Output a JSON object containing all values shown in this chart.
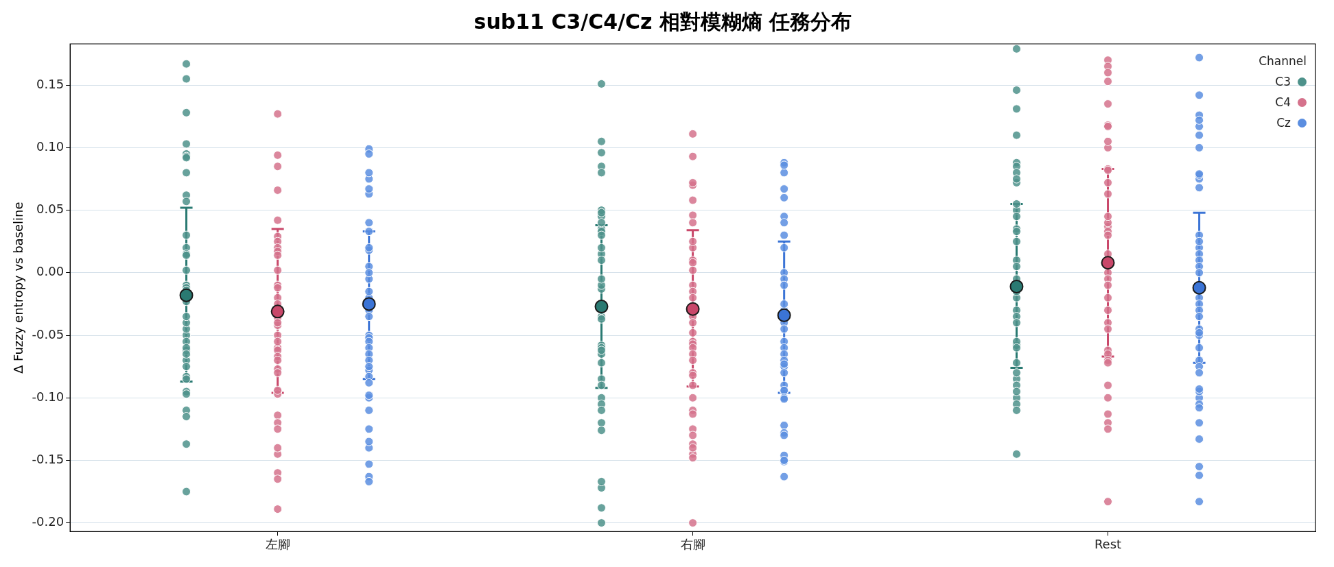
{
  "chart_data": {
    "type": "scatter",
    "title": "sub11 C3/C4/Cz 相對模糊熵 任務分布",
    "ylabel": "Δ Fuzzy entropy vs baseline",
    "legend_title": "Channel",
    "legend": "top right",
    "grid": "y",
    "marker": "circle",
    "categories": [
      "左腳",
      "右腳",
      "Rest"
    ],
    "ylim": [
      -0.207,
      0.183
    ],
    "yticks": [
      {
        "value": -0.2,
        "label": "-0.20"
      },
      {
        "value": -0.15,
        "label": "-0.15"
      },
      {
        "value": -0.1,
        "label": "-0.10"
      },
      {
        "value": -0.05,
        "label": "-0.05"
      },
      {
        "value": 0,
        "label": "0.00"
      },
      {
        "value": 0.05,
        "label": "0.05"
      },
      {
        "value": 0.1,
        "label": "0.10"
      },
      {
        "value": 0.15,
        "label": "0.15"
      }
    ],
    "series": [
      {
        "name": "C3",
        "color": "#4e928b",
        "x": [
          "左腳",
          "左腳",
          "左腳",
          "左腳",
          "左腳",
          "左腳",
          "左腳",
          "左腳",
          "左腳",
          "左腳",
          "左腳",
          "左腳",
          "左腳",
          "左腳",
          "左腳",
          "左腳",
          "左腳",
          "左腳",
          "左腳",
          "左腳",
          "左腳",
          "左腳",
          "左腳",
          "左腳",
          "左腳",
          "左腳",
          "左腳",
          "左腳",
          "左腳",
          "左腳",
          "左腳",
          "左腳",
          "左腳",
          "左腳",
          "左腳",
          "左腳",
          "左腳",
          "右腳",
          "右腳",
          "右腳",
          "右腳",
          "右腳",
          "右腳",
          "右腳",
          "右腳",
          "右腳",
          "右腳",
          "右腳",
          "右腳",
          "右腳",
          "右腳",
          "右腳",
          "右腳",
          "右腳",
          "右腳",
          "右腳",
          "右腳",
          "右腳",
          "右腳",
          "右腳",
          "右腳",
          "右腳",
          "右腳",
          "右腳",
          "右腳",
          "右腳",
          "右腳",
          "右腳",
          "右腳",
          "右腳",
          "右腳",
          "右腳",
          "右腳",
          "右腳",
          "Rest",
          "Rest",
          "Rest",
          "Rest",
          "Rest",
          "Rest",
          "Rest",
          "Rest",
          "Rest",
          "Rest",
          "Rest",
          "Rest",
          "Rest",
          "Rest",
          "Rest",
          "Rest",
          "Rest",
          "Rest",
          "Rest",
          "Rest",
          "Rest",
          "Rest",
          "Rest",
          "Rest",
          "Rest",
          "Rest",
          "Rest",
          "Rest",
          "Rest",
          "Rest",
          "Rest",
          "Rest",
          "Rest",
          "Rest",
          "Rest"
        ],
        "values": [
          0.103,
          0.095,
          0.155,
          0.167,
          0.128,
          0.093,
          0.092,
          0.08,
          0.062,
          0.057,
          0.02,
          0.03,
          0.015,
          0.014,
          0.002,
          -0.023,
          -0.01,
          -0.012,
          -0.014,
          -0.05,
          -0.055,
          -0.062,
          -0.07,
          -0.06,
          -0.065,
          -0.083,
          -0.075,
          -0.11,
          -0.095,
          -0.085,
          -0.115,
          -0.097,
          -0.137,
          -0.175,
          -0.045,
          -0.04,
          -0.035,
          0.151,
          0.096,
          0.105,
          0.085,
          0.08,
          0.045,
          0.05,
          0.035,
          0.04,
          0.033,
          0.03,
          0.048,
          0.015,
          0.02,
          0.01,
          -0.013,
          -0.01,
          -0.005,
          -0.035,
          -0.03,
          -0.037,
          -0.058,
          -0.06,
          -0.065,
          -0.062,
          -0.072,
          -0.085,
          -0.1,
          -0.09,
          -0.105,
          -0.11,
          -0.12,
          -0.126,
          -0.172,
          -0.188,
          -0.2,
          -0.167,
          0.179,
          0.146,
          0.131,
          0.11,
          0.088,
          0.085,
          0.08,
          0.072,
          0.075,
          0.05,
          0.055,
          0.045,
          0.035,
          0.025,
          0.033,
          0.01,
          0.005,
          -0.005,
          -0.02,
          -0.03,
          -0.035,
          -0.04,
          -0.058,
          -0.055,
          -0.06,
          -0.072,
          -0.085,
          -0.08,
          -0.09,
          -0.1,
          -0.105,
          -0.11,
          -0.095,
          -0.145,
          -0.015
        ]
      },
      {
        "name": "C4",
        "color": "#d5728c",
        "x": [
          "左腳",
          "左腳",
          "左腳",
          "左腳",
          "左腳",
          "左腳",
          "左腳",
          "左腳",
          "左腳",
          "左腳",
          "左腳",
          "左腳",
          "左腳",
          "左腳",
          "左腳",
          "左腳",
          "左腳",
          "左腳",
          "左腳",
          "左腳",
          "左腳",
          "左腳",
          "左腳",
          "左腳",
          "左腳",
          "左腳",
          "左腳",
          "左腳",
          "左腳",
          "左腳",
          "左腳",
          "左腳",
          "左腳",
          "左腳",
          "左腳",
          "左腳",
          "左腳",
          "右腳",
          "右腳",
          "右腳",
          "右腳",
          "右腳",
          "右腳",
          "右腳",
          "右腳",
          "右腳",
          "右腳",
          "右腳",
          "右腳",
          "右腳",
          "右腳",
          "右腳",
          "右腳",
          "右腳",
          "右腳",
          "右腳",
          "右腳",
          "右腳",
          "右腳",
          "右腳",
          "右腳",
          "右腳",
          "右腳",
          "右腳",
          "右腳",
          "右腳",
          "右腳",
          "右腳",
          "右腳",
          "右腳",
          "右腳",
          "右腳",
          "右腳",
          "Rest",
          "Rest",
          "Rest",
          "Rest",
          "Rest",
          "Rest",
          "Rest",
          "Rest",
          "Rest",
          "Rest",
          "Rest",
          "Rest",
          "Rest",
          "Rest",
          "Rest",
          "Rest",
          "Rest",
          "Rest",
          "Rest",
          "Rest",
          "Rest",
          "Rest",
          "Rest",
          "Rest",
          "Rest",
          "Rest",
          "Rest",
          "Rest",
          "Rest",
          "Rest",
          "Rest",
          "Rest",
          "Rest",
          "Rest",
          "Rest",
          "Rest"
        ],
        "values": [
          0.029,
          0.094,
          0.127,
          0.085,
          0.066,
          0.042,
          0.002,
          0.025,
          0.02,
          0.017,
          0.014,
          -0.01,
          -0.012,
          -0.02,
          -0.036,
          -0.042,
          -0.04,
          -0.05,
          -0.06,
          -0.062,
          -0.067,
          -0.07,
          -0.077,
          -0.08,
          -0.095,
          -0.097,
          -0.094,
          -0.114,
          -0.12,
          -0.125,
          -0.145,
          -0.14,
          -0.16,
          -0.165,
          -0.189,
          -0.055,
          -0.025,
          0.111,
          0.093,
          0.07,
          0.072,
          0.058,
          0.046,
          0.04,
          0.02,
          0.025,
          0.01,
          0.008,
          0.002,
          -0.01,
          -0.015,
          -0.035,
          -0.04,
          -0.048,
          -0.055,
          -0.057,
          -0.06,
          -0.065,
          -0.07,
          -0.08,
          -0.09,
          -0.082,
          -0.1,
          -0.11,
          -0.113,
          -0.125,
          -0.13,
          -0.137,
          -0.145,
          -0.14,
          -0.148,
          -0.2,
          -0.02,
          0.17,
          0.165,
          0.16,
          0.153,
          0.135,
          0.118,
          0.117,
          0.1,
          0.105,
          0.072,
          0.083,
          0.082,
          0.063,
          0.037,
          0.04,
          0.045,
          0.033,
          0.03,
          0.015,
          0.0,
          -0.005,
          -0.01,
          -0.02,
          -0.03,
          -0.04,
          -0.045,
          -0.062,
          -0.065,
          -0.07,
          -0.072,
          -0.09,
          -0.1,
          -0.12,
          -0.125,
          -0.113,
          -0.183
        ]
      },
      {
        "name": "Cz",
        "color": "#5b8ee0",
        "x": [
          "左腳",
          "左腳",
          "左腳",
          "左腳",
          "左腳",
          "左腳",
          "左腳",
          "左腳",
          "左腳",
          "左腳",
          "左腳",
          "左腳",
          "左腳",
          "左腳",
          "左腳",
          "左腳",
          "左腳",
          "左腳",
          "左腳",
          "左腳",
          "左腳",
          "左腳",
          "左腳",
          "左腳",
          "左腳",
          "左腳",
          "左腳",
          "左腳",
          "左腳",
          "左腳",
          "左腳",
          "左腳",
          "左腳",
          "左腳",
          "左腳",
          "左腳",
          "右腳",
          "右腳",
          "右腳",
          "右腳",
          "右腳",
          "右腳",
          "右腳",
          "右腳",
          "右腳",
          "右腳",
          "右腳",
          "右腳",
          "右腳",
          "右腳",
          "右腳",
          "右腳",
          "右腳",
          "右腳",
          "右腳",
          "右腳",
          "右腳",
          "右腳",
          "右腳",
          "右腳",
          "右腳",
          "右腳",
          "右腳",
          "右腳",
          "右腳",
          "右腳",
          "右腳",
          "右腳",
          "右腳",
          "右腳",
          "右腳",
          "Rest",
          "Rest",
          "Rest",
          "Rest",
          "Rest",
          "Rest",
          "Rest",
          "Rest",
          "Rest",
          "Rest",
          "Rest",
          "Rest",
          "Rest",
          "Rest",
          "Rest",
          "Rest",
          "Rest",
          "Rest",
          "Rest",
          "Rest",
          "Rest",
          "Rest",
          "Rest",
          "Rest",
          "Rest",
          "Rest",
          "Rest",
          "Rest",
          "Rest",
          "Rest",
          "Rest",
          "Rest",
          "Rest",
          "Rest",
          "Rest",
          "Rest",
          "Rest",
          "Rest",
          "Rest"
        ],
        "values": [
          0.063,
          0.067,
          0.075,
          0.099,
          0.095,
          0.08,
          0.018,
          0.02,
          0.04,
          0.033,
          0.005,
          -0.005,
          0.0,
          -0.02,
          -0.03,
          -0.035,
          -0.05,
          -0.052,
          -0.055,
          -0.06,
          -0.065,
          -0.07,
          -0.078,
          -0.083,
          -0.088,
          -0.1,
          -0.098,
          -0.11,
          -0.14,
          -0.125,
          -0.135,
          -0.153,
          -0.163,
          -0.167,
          -0.075,
          -0.015,
          0.067,
          0.088,
          0.08,
          0.086,
          0.06,
          0.045,
          0.04,
          0.02,
          0.03,
          0.0,
          -0.005,
          -0.03,
          -0.025,
          -0.04,
          -0.055,
          -0.06,
          -0.065,
          -0.07,
          -0.075,
          -0.08,
          -0.073,
          -0.095,
          -0.09,
          -0.094,
          -0.1,
          -0.101,
          -0.122,
          -0.128,
          -0.13,
          -0.151,
          -0.146,
          -0.15,
          -0.163,
          -0.01,
          -0.045,
          0.172,
          0.11,
          0.126,
          0.117,
          0.142,
          0.122,
          0.1,
          0.075,
          0.078,
          0.079,
          0.068,
          0.02,
          0.03,
          0.025,
          0.015,
          0.01,
          0.005,
          0.0,
          -0.02,
          -0.025,
          -0.03,
          -0.035,
          -0.045,
          -0.05,
          -0.048,
          -0.07,
          -0.075,
          -0.08,
          -0.1,
          -0.095,
          -0.105,
          -0.093,
          -0.108,
          -0.12,
          -0.133,
          -0.162,
          -0.155,
          -0.183,
          -0.06
        ]
      },
      {
        "color": "#2a7a72",
        "x": [
          "左腳",
          "右腳",
          "Rest"
        ],
        "values": [
          -0.018,
          -0.027,
          -0.011
        ],
        "errors": [
          [
            -0.087,
            0.052
          ],
          [
            -0.092,
            0.038
          ],
          [
            -0.076,
            0.055
          ]
        ]
      },
      {
        "color": "#c9486a",
        "x": [
          "左腳",
          "右腳",
          "Rest"
        ],
        "values": [
          -0.031,
          -0.029,
          0.008
        ],
        "errors": [
          [
            -0.096,
            0.035
          ],
          [
            -0.091,
            0.034
          ],
          [
            -0.067,
            0.083
          ]
        ]
      },
      {
        "color": "#3b74d6",
        "x": [
          "左腳",
          "右腳",
          "Rest"
        ],
        "values": [
          -0.025,
          -0.034,
          -0.012
        ],
        "errors": [
          [
            -0.085,
            0.033
          ],
          [
            -0.096,
            0.025
          ],
          [
            -0.072,
            0.048
          ]
        ]
      }
    ]
  }
}
